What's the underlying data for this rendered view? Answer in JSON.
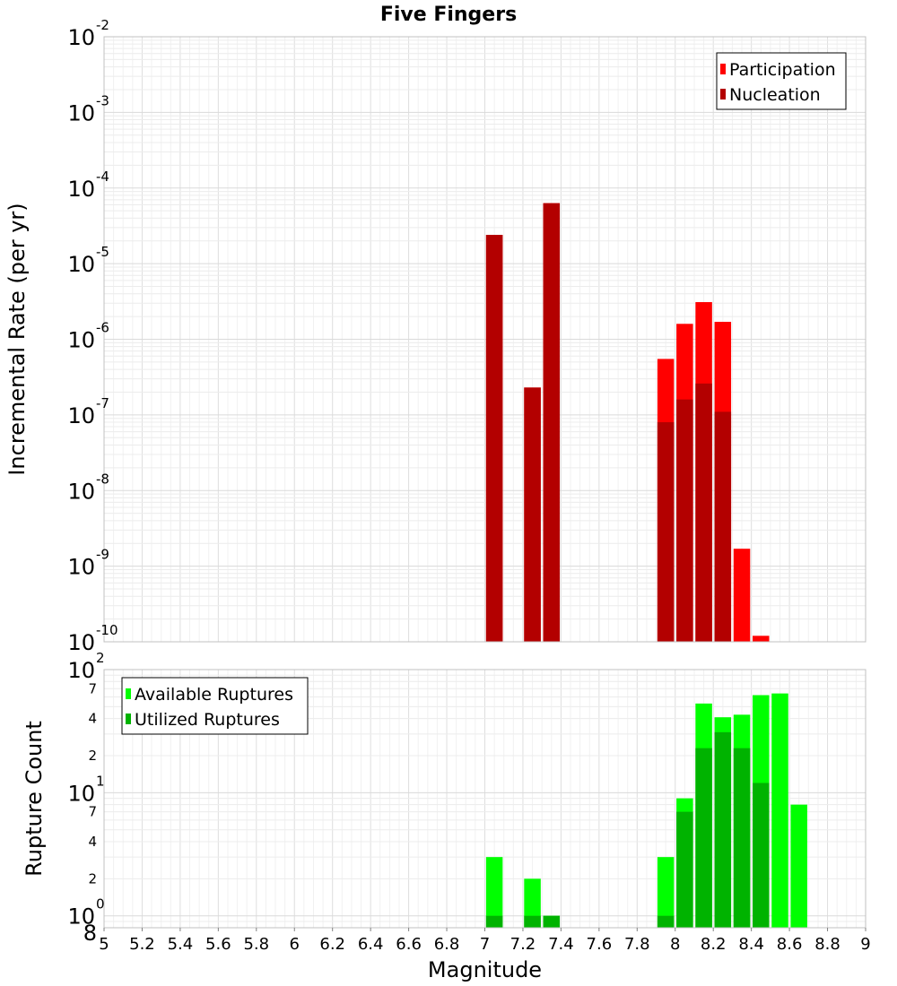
{
  "chart_data": [
    {
      "type": "bar",
      "title": "Five Fingers",
      "xlabel": "",
      "ylabel": "Incremental Rate (per yr)",
      "xlim": [
        5,
        9
      ],
      "ylim": [
        1e-10,
        0.01
      ],
      "yscale": "log",
      "grid": true,
      "legend_position": "top-right",
      "y_ticks": [
        {
          "base": "10",
          "exp": "-10",
          "value": 1e-10
        },
        {
          "base": "10",
          "exp": "-9",
          "value": 1e-09
        },
        {
          "base": "10",
          "exp": "-8",
          "value": 1e-08
        },
        {
          "base": "10",
          "exp": "-7",
          "value": 1e-07
        },
        {
          "base": "10",
          "exp": "-6",
          "value": 1e-06
        },
        {
          "base": "10",
          "exp": "-5",
          "value": 1e-05
        },
        {
          "base": "10",
          "exp": "-4",
          "value": 0.0001
        },
        {
          "base": "10",
          "exp": "-3",
          "value": 0.001
        },
        {
          "base": "10",
          "exp": "-2",
          "value": 0.01
        }
      ],
      "series": [
        {
          "name": "Participation",
          "color": "#ff0000",
          "x": [
            7.05,
            7.25,
            7.35,
            7.95,
            8.05,
            8.15,
            8.25,
            8.35,
            8.45
          ],
          "values": [
            2.4e-05,
            2.3e-07,
            6.3e-05,
            5.5e-07,
            1.6e-06,
            3.1e-06,
            1.7e-06,
            1.7e-09,
            1.2e-10
          ]
        },
        {
          "name": "Nucleation",
          "color": "#b30000",
          "x": [
            7.05,
            7.25,
            7.35,
            7.95,
            8.05,
            8.15,
            8.25
          ],
          "values": [
            2.4e-05,
            2.3e-07,
            6.3e-05,
            8e-08,
            1.6e-07,
            2.6e-07,
            1.1e-07
          ]
        }
      ]
    },
    {
      "type": "bar",
      "xlabel": "Magnitude",
      "ylabel": "Rupture Count",
      "xlim": [
        5,
        9
      ],
      "ylim": [
        0.8,
        100
      ],
      "yscale": "log",
      "grid": true,
      "legend_position": "top-left",
      "x_ticks": [
        "5",
        "5.2",
        "5.4",
        "5.6",
        "5.8",
        "6",
        "6.2",
        "6.4",
        "6.6",
        "6.8",
        "7",
        "7.2",
        "7.4",
        "7.6",
        "7.8",
        "8",
        "8.2",
        "8.4",
        "8.6",
        "8.8",
        "9"
      ],
      "y_ticks": [
        {
          "base": "10",
          "exp": "0",
          "value": 1
        },
        {
          "base": "10",
          "exp": "1",
          "value": 10
        },
        {
          "base": "10",
          "exp": "2",
          "value": 100
        }
      ],
      "y_minor_labels": [
        {
          "label": "8",
          "value": 0.8
        },
        {
          "label": "2",
          "value": 2
        },
        {
          "label": "4",
          "value": 4
        },
        {
          "label": "7",
          "value": 7
        },
        {
          "label": "2",
          "value": 20
        },
        {
          "label": "4",
          "value": 40
        },
        {
          "label": "7",
          "value": 70
        }
      ],
      "series": [
        {
          "name": "Available Ruptures",
          "color": "#00ff00",
          "x": [
            7.05,
            7.25,
            7.35,
            7.95,
            8.05,
            8.15,
            8.25,
            8.35,
            8.45,
            8.55,
            8.65
          ],
          "values": [
            3,
            2,
            1,
            3,
            9,
            53,
            41,
            43,
            62,
            64,
            8
          ]
        },
        {
          "name": "Utilized Ruptures",
          "color": "#00b300",
          "x": [
            7.05,
            7.25,
            7.35,
            7.95,
            8.05,
            8.15,
            8.25,
            8.35,
            8.45
          ],
          "values": [
            1,
            1,
            1,
            1,
            7,
            23,
            31,
            23,
            12
          ]
        }
      ]
    }
  ]
}
